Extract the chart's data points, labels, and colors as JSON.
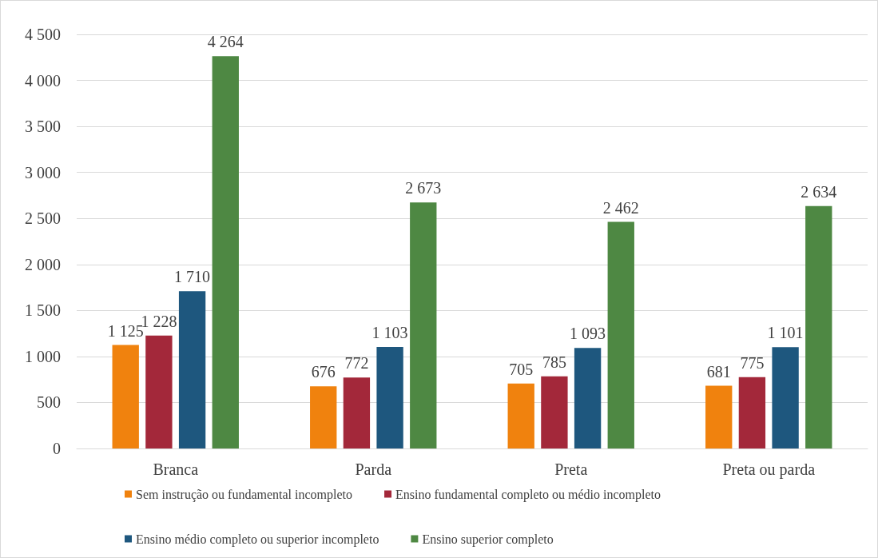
{
  "chart_data": {
    "type": "bar",
    "categories": [
      "Branca",
      "Parda",
      "Preta",
      "Preta ou parda"
    ],
    "series": [
      {
        "name": "Sem instrução ou fundamental incompleto",
        "color": "#f0820e",
        "values": [
          1125,
          676,
          705,
          681
        ],
        "value_labels": [
          "1 125",
          "676",
          "705",
          "681"
        ]
      },
      {
        "name": "Ensino fundamental completo ou médio incompleto",
        "color": "#a3283a",
        "values": [
          1228,
          772,
          785,
          775
        ],
        "value_labels": [
          "1 228",
          "772",
          "785",
          "775"
        ]
      },
      {
        "name": "Ensino médio completo ou superior incompleto",
        "color": "#1e577e",
        "values": [
          1710,
          1103,
          1093,
          1101
        ],
        "value_labels": [
          "1 710",
          "1 103",
          "1 093",
          "1 101"
        ]
      },
      {
        "name": "Ensino superior completo",
        "color": "#4e8843",
        "values": [
          4264,
          2673,
          2462,
          2634
        ],
        "value_labels": [
          "4 264",
          "2 673",
          "2 462",
          "2 634"
        ]
      }
    ],
    "ylim": [
      0,
      4500
    ],
    "yticks": [
      0,
      500,
      {
        "value": 1000,
        "label": "1 000"
      },
      {
        "value": 1500,
        "label": "1 500"
      },
      {
        "value": 2000,
        "label": "2 000"
      },
      {
        "value": 2500,
        "label": "2 500"
      },
      {
        "value": 3000,
        "label": "3 000"
      },
      {
        "value": 3500,
        "label": "3 500"
      },
      {
        "value": 4000,
        "label": "4 000"
      },
      {
        "value": 4500,
        "label": "4 500"
      }
    ],
    "grid": "y",
    "legend": "bottom"
  }
}
